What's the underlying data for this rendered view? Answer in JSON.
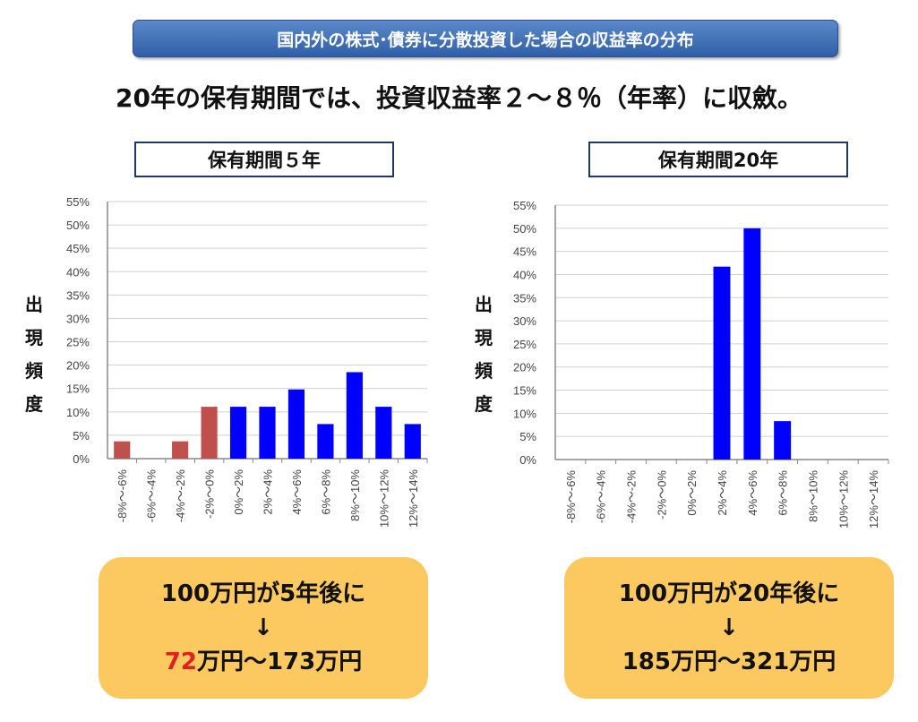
{
  "banner": "国内外の株式･債券に分散投資した場合の収益率の分布",
  "subtitle": "20年の保有期間では、投資収益率２～８％（年率）に収斂。",
  "ylabel_chars": [
    "出",
    "現",
    "頻",
    "度"
  ],
  "chart_data": [
    {
      "type": "bar",
      "title": "保有期間５年",
      "ylabel": "出現頻度",
      "ylim": [
        0,
        55
      ],
      "yticks": [
        "0%",
        "5%",
        "10%",
        "15%",
        "20%",
        "25%",
        "30%",
        "35%",
        "40%",
        "45%",
        "50%",
        "55%"
      ],
      "categories": [
        "-8%～-6%",
        "-6%～-4%",
        "-4%～-2%",
        "-2%～0%",
        "0%～2%",
        "2%～4%",
        "4%～6%",
        "6%～8%",
        "8%～10%",
        "10%～12%",
        "12%～14%"
      ],
      "values": [
        3.7,
        0,
        3.7,
        11.1,
        11.1,
        11.1,
        14.8,
        7.4,
        18.5,
        11.1,
        7.4
      ],
      "colors": [
        "#c0504d",
        "#c0504d",
        "#c0504d",
        "#c0504d",
        "#0000ff",
        "#0000ff",
        "#0000ff",
        "#0000ff",
        "#0000ff",
        "#0000ff",
        "#0000ff"
      ],
      "grid": true
    },
    {
      "type": "bar",
      "title": "保有期間20年",
      "ylabel": "出現頻度",
      "ylim": [
        0,
        55
      ],
      "yticks": [
        "0%",
        "5%",
        "10%",
        "15%",
        "20%",
        "25%",
        "30%",
        "35%",
        "40%",
        "45%",
        "50%",
        "55%"
      ],
      "categories": [
        "-8%～-6%",
        "-6%～-4%",
        "-4%～-2%",
        "-2%～0%",
        "0%～2%",
        "2%～4%",
        "4%～6%",
        "6%～8%",
        "8%～10%",
        "10%～12%",
        "12%～14%"
      ],
      "values": [
        0,
        0,
        0,
        0,
        0,
        41.7,
        50,
        8.3,
        0,
        0,
        0
      ],
      "colors": [
        "#0000ff",
        "#0000ff",
        "#0000ff",
        "#0000ff",
        "#0000ff",
        "#0000ff",
        "#0000ff",
        "#0000ff",
        "#0000ff",
        "#0000ff",
        "#0000ff"
      ],
      "grid": true
    }
  ],
  "results": [
    {
      "line1": "100万円が5年後に",
      "arrow": "↓",
      "low": "72",
      "rest": "万円～173万円"
    },
    {
      "line1": "100万円が20年後に",
      "arrow": "↓",
      "low": "185",
      "rest": "万円～321万円"
    }
  ]
}
